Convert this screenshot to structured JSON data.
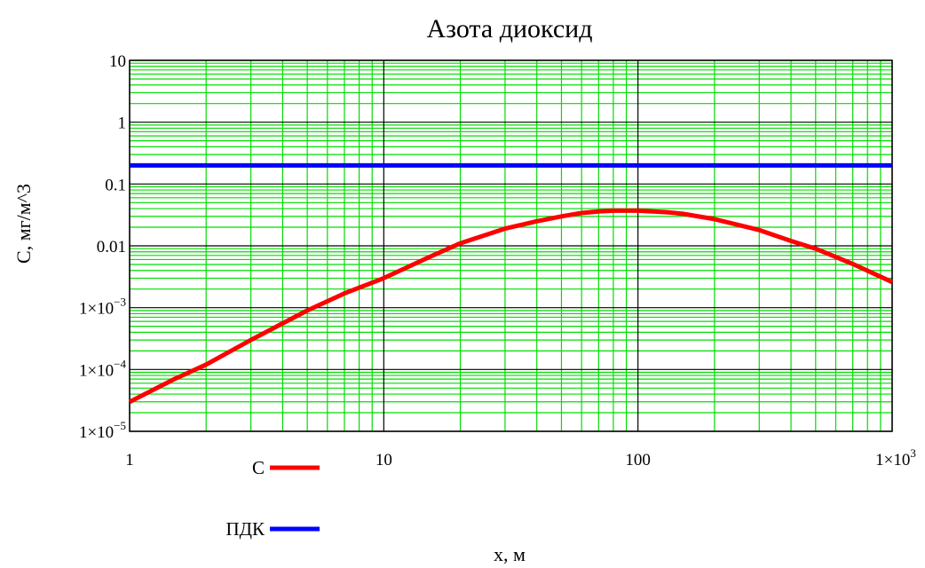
{
  "chart_data": {
    "type": "line",
    "title": "Азота диоксид",
    "xlabel": "x, м",
    "ylabel": "C, мг/м^3",
    "x_scale": "log",
    "y_scale": "log",
    "xlim": [
      1,
      1000
    ],
    "ylim": [
      1e-05,
      10
    ],
    "grid": true,
    "legend_placement": "bottom-left",
    "x_ticks": [
      {
        "value": 1,
        "label": "1",
        "exp": ""
      },
      {
        "value": 10,
        "label": "10",
        "exp": ""
      },
      {
        "value": 100,
        "label": "100",
        "exp": ""
      },
      {
        "value": 1000,
        "label": "1×10",
        "exp": "3"
      }
    ],
    "y_ticks": [
      {
        "value": 10,
        "label": "10",
        "exp": ""
      },
      {
        "value": 1,
        "label": "1",
        "exp": ""
      },
      {
        "value": 0.1,
        "label": "0.1",
        "exp": ""
      },
      {
        "value": 0.01,
        "label": "0.01",
        "exp": ""
      },
      {
        "value": 0.001,
        "label": "1×10",
        "exp": "−3"
      },
      {
        "value": 0.0001,
        "label": "1×10",
        "exp": "−4"
      },
      {
        "value": 1e-05,
        "label": "1×10",
        "exp": "−5"
      }
    ],
    "series": [
      {
        "name": "C",
        "color": "#ff0000",
        "x": [
          1,
          1.5,
          2,
          3,
          5,
          7,
          10,
          15,
          20,
          30,
          40,
          50,
          60,
          70,
          80,
          100,
          130,
          150,
          200,
          300,
          400,
          500,
          700,
          1000
        ],
        "y": [
          3e-05,
          7e-05,
          0.00012,
          0.0003,
          0.0009,
          0.0017,
          0.003,
          0.0065,
          0.011,
          0.019,
          0.025,
          0.03,
          0.034,
          0.036,
          0.037,
          0.037,
          0.035,
          0.033,
          0.027,
          0.018,
          0.012,
          0.009,
          0.0051,
          0.0026
        ]
      },
      {
        "name": "ПДК",
        "color": "#0000ff",
        "x": [
          1,
          1000
        ],
        "y": [
          0.2,
          0.2
        ]
      }
    ],
    "colors": {
      "grid_minor": "#00dd00",
      "grid_major": "#000000"
    }
  }
}
